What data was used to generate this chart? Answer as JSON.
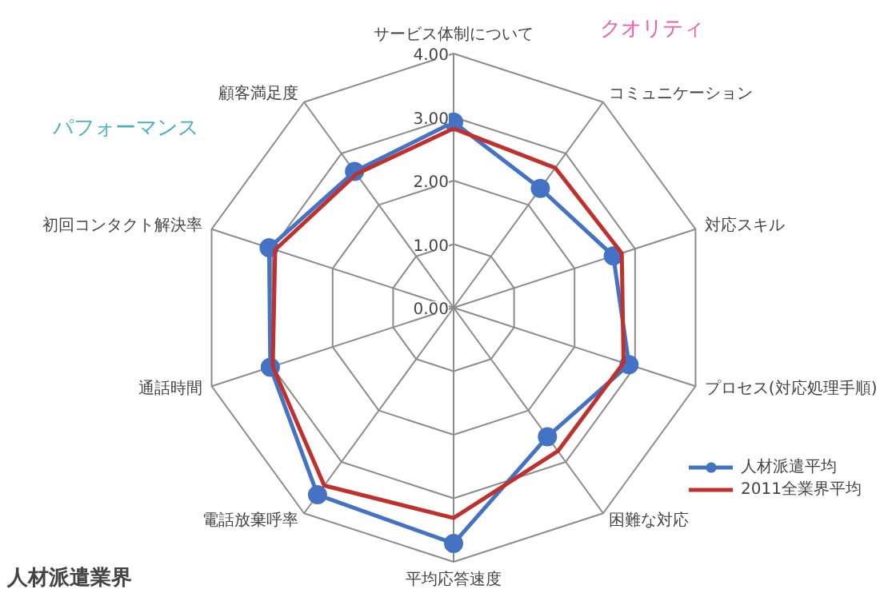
{
  "chart_data": {
    "type": "radar",
    "title": "人材派遣業界",
    "categories": [
      "サービス体制について",
      "コミュニケーション",
      "対応スキル",
      "プロセス(対応処理手順)",
      "困難な対応",
      "平均応答速度",
      "電話放棄呼率",
      "通話時間",
      "初回コンタクト解決率",
      "顧客満足度"
    ],
    "series": [
      {
        "name": "人材派遣平均",
        "color": "#4472c4",
        "marker": "circle",
        "values": [
          2.92,
          2.32,
          2.64,
          2.9,
          2.51,
          3.71,
          3.64,
          3.03,
          3.05,
          2.65
        ]
      },
      {
        "name": "2011全業界平均",
        "color": "#c0312d",
        "marker": "none",
        "values": [
          2.82,
          2.72,
          2.78,
          2.81,
          2.79,
          3.31,
          3.46,
          2.99,
          2.95,
          2.6
        ]
      }
    ],
    "ylim": [
      0,
      4
    ],
    "yticks": [
      {
        "value": 0,
        "label": "0.00"
      },
      {
        "value": 1,
        "label": "1.00"
      },
      {
        "value": 2,
        "label": "2.00"
      },
      {
        "value": 3,
        "label": "3.00"
      },
      {
        "value": 4,
        "label": "4.00"
      }
    ],
    "annotations": [
      "クオリティ",
      "パフォーマンス"
    ],
    "legend": "bottom right",
    "grid": true
  }
}
